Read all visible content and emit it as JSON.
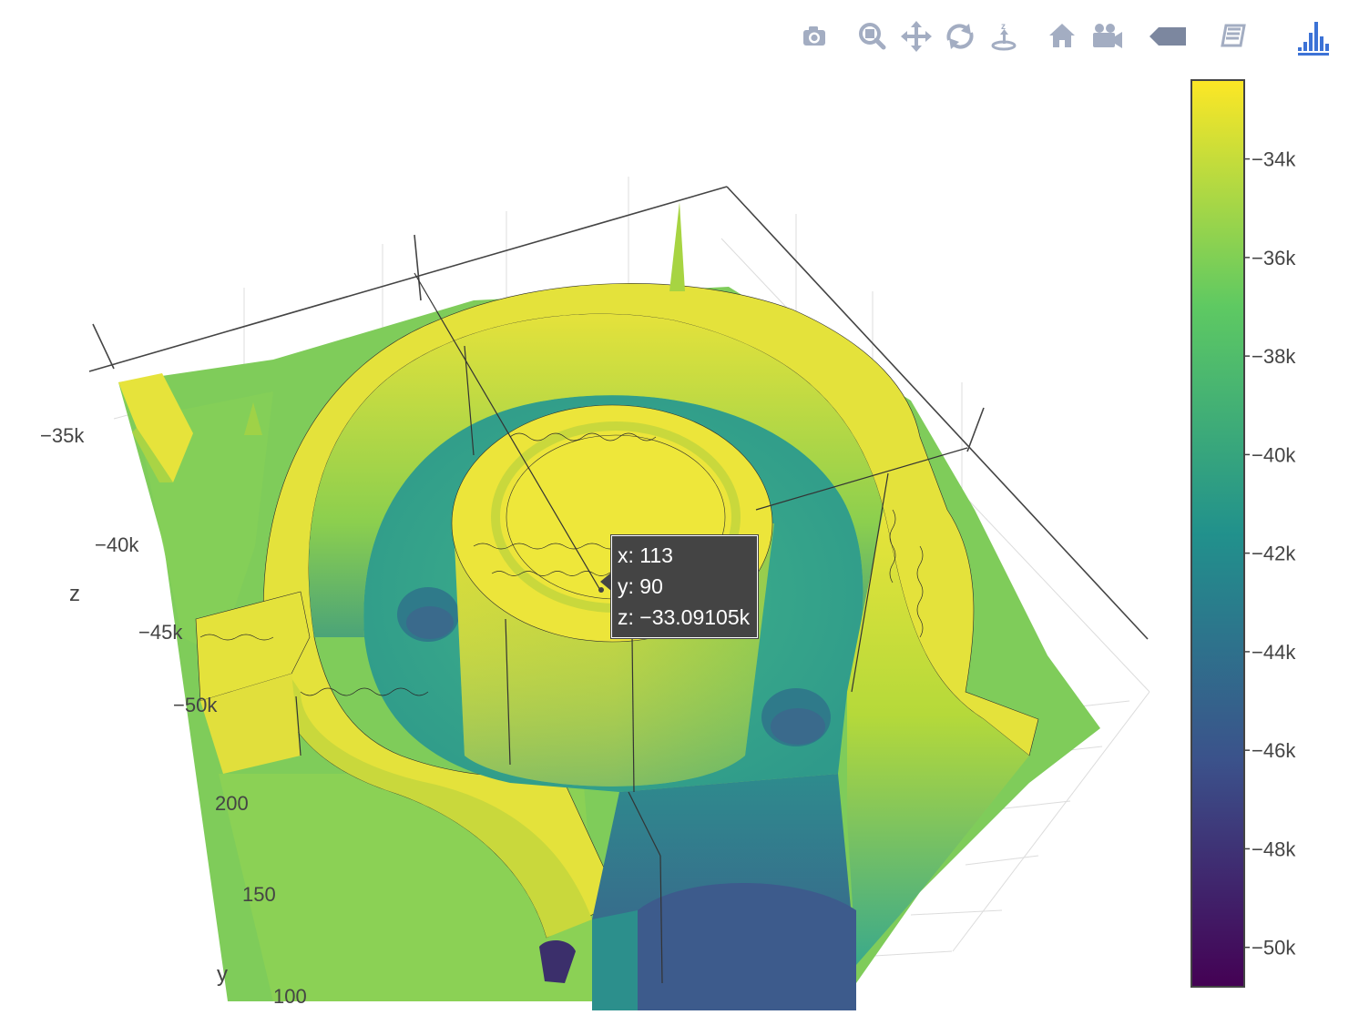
{
  "modebar": {
    "buttons": [
      {
        "name": "camera-icon"
      },
      {
        "name": "zoom-icon"
      },
      {
        "name": "pan-icon"
      },
      {
        "name": "orbit-rotation-icon"
      },
      {
        "name": "turntable-rotation-icon"
      },
      {
        "name": "reset-camera-home-icon"
      },
      {
        "name": "reset-camera-last-save-icon"
      },
      {
        "name": "toggle-hover-icon"
      },
      {
        "name": "edit-chart-icon"
      },
      {
        "name": "plotly-logo-icon"
      }
    ]
  },
  "chart_data": {
    "type": "surface",
    "colorscale": "Viridis",
    "colors": [
      "#440154",
      "#3b528b",
      "#21918c",
      "#5ec962",
      "#fde725"
    ],
    "z_axis": {
      "title": "z",
      "tick_labels": [
        "−35k",
        "−40k",
        "−45k",
        "−50k"
      ]
    },
    "y_axis": {
      "title": "y",
      "tick_labels": [
        "200",
        "150",
        "100"
      ]
    },
    "colorbar": {
      "range": [
        -50800,
        -32400
      ],
      "tick_values": [
        -34000,
        -36000,
        -38000,
        -40000,
        -42000,
        -44000,
        -46000,
        -48000,
        -50000
      ],
      "tick_labels": [
        "−34k",
        "−36k",
        "−38k",
        "−40k",
        "−42k",
        "−44k",
        "−46k",
        "−48k",
        "−50k"
      ]
    },
    "hover": {
      "x": "x: 113",
      "y": "y: 90",
      "z": "z: −33.09105k"
    }
  }
}
